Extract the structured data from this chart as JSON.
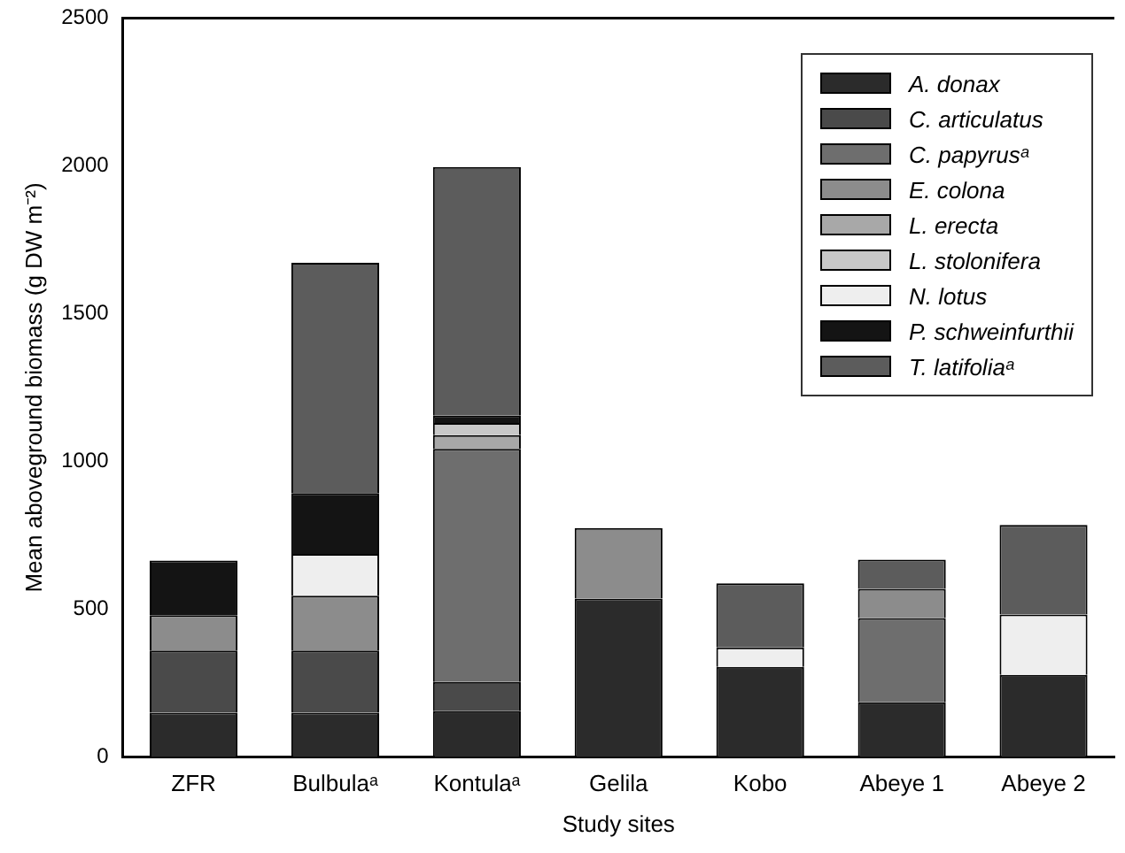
{
  "chart_data": {
    "type": "bar",
    "stacked": true,
    "xlabel": "Study sites",
    "ylabel": "Mean aboveground biomass (g DW m⁻²)",
    "categories": [
      "ZFR",
      "Bulbulaᵃ",
      "Kontulaᵃ",
      "Gelila",
      "Kobo",
      "Abeye 1",
      "Abeye 2"
    ],
    "series": [
      {
        "name": "A. donax",
        "color": "#2b2b2b",
        "values": [
          150,
          150,
          155,
          536,
          305,
          185,
          278
        ]
      },
      {
        "name": "C. articulatus",
        "color": "#4a4a4a",
        "values": [
          210,
          210,
          99,
          null,
          null,
          null,
          null
        ]
      },
      {
        "name": "C. papyrusᵃ",
        "color": "#6e6e6e",
        "values": [
          null,
          null,
          789,
          null,
          null,
          285,
          null
        ]
      },
      {
        "name": "E. colona",
        "color": "#8c8c8c",
        "values": [
          120,
          186,
          null,
          239,
          null,
          99,
          null
        ]
      },
      {
        "name": "L. erecta",
        "color": "#a8a8a8",
        "values": [
          null,
          null,
          46,
          null,
          null,
          null,
          null
        ]
      },
      {
        "name": "L. stolonifera",
        "color": "#c8c8c8",
        "values": [
          null,
          null,
          41,
          null,
          null,
          null,
          null
        ]
      },
      {
        "name": "N. lotus",
        "color": "#eeeeee",
        "values": [
          null,
          141,
          null,
          null,
          66,
          null,
          204
        ]
      },
      {
        "name": "P. schweinfurthii",
        "color": "#141414",
        "values": [
          185,
          206,
          25,
          null,
          null,
          null,
          null
        ]
      },
      {
        "name": "T. latifoliaᵃ",
        "color": "#5c5c5c",
        "values": [
          null,
          779,
          841,
          null,
          217,
          99,
          303
        ]
      }
    ],
    "ylim": [
      0,
      2500
    ],
    "yticks": [
      0,
      500,
      1000,
      1500,
      2000,
      2500
    ],
    "grid": false,
    "legend": "top right"
  }
}
